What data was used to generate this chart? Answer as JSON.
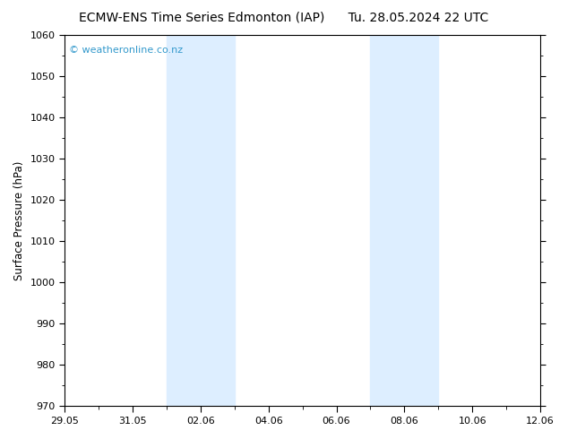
{
  "title_left": "ECMW-ENS Time Series Edmonton (IAP)",
  "title_right": "Tu. 28.05.2024 22 UTC",
  "ylabel": "Surface Pressure (hPa)",
  "ylim": [
    970,
    1060
  ],
  "yticks": [
    970,
    980,
    990,
    1000,
    1010,
    1020,
    1030,
    1040,
    1050,
    1060
  ],
  "xlim_start": 0,
  "xlim_end": 14,
  "xtick_labels": [
    "29.05",
    "31.05",
    "02.06",
    "04.06",
    "06.06",
    "08.06",
    "10.06",
    "12.06"
  ],
  "xtick_positions": [
    0,
    2,
    4,
    6,
    8,
    10,
    12,
    14
  ],
  "shaded_bands": [
    {
      "x_start": 3,
      "x_end": 5
    },
    {
      "x_start": 9,
      "x_end": 11
    }
  ],
  "shade_color": "#ddeeff",
  "background_color": "#ffffff",
  "plot_bg_color": "#ffffff",
  "watermark_text": "© weatheronline.co.nz",
  "watermark_color": "#3399cc",
  "title_fontsize": 10,
  "label_fontsize": 8.5,
  "tick_fontsize": 8,
  "watermark_fontsize": 8
}
